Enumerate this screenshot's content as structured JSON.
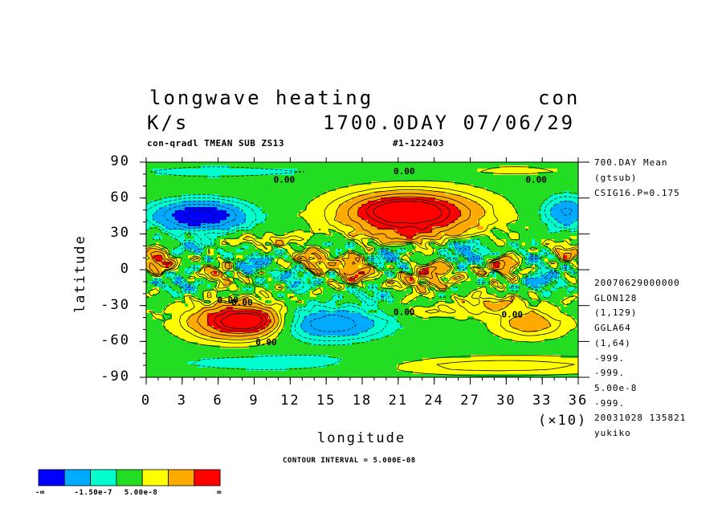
{
  "header": {
    "title_left": "longwave heating",
    "title_right": "con",
    "units": "K/s",
    "time": "1700.0DAY 07/06/29",
    "subtitle": "con-qradl TMEAN SUB ZS13",
    "run_id": "#1-122403"
  },
  "right_info": {
    "top": [
      "700.DAY Mean",
      "(gtsub)",
      "CSIG16.P=0.175"
    ],
    "bottom": [
      "20070629000000",
      "GLON128",
      "(1,129)",
      "GGLA64",
      "(1,64)",
      "-999.",
      "-999.",
      "5.00e-8",
      "-999.",
      "20031028 135821",
      "yukiko"
    ]
  },
  "colorbar": {
    "colors": [
      "#0000ff",
      "#00aaff",
      "#00ffcc",
      "#22dd22",
      "#ffff00",
      "#ffaa00",
      "#ff0000"
    ],
    "labels": [
      "-∞",
      "-1.50e-7",
      "5.00e-8",
      "∞"
    ]
  },
  "contour_interval": "CONTOUR INTERVAL = 5.000E-08",
  "contour_labels": [
    "0.00",
    "0.00",
    "0.00",
    "0.00",
    "0.00",
    "0.00",
    "0.00",
    "0.00"
  ],
  "chart_data": {
    "type": "heatmap",
    "title": "longwave heating",
    "xlabel": "longitude",
    "ylabel": "latitude",
    "x_multiplier": "(×10)",
    "xlim": [
      0,
      36
    ],
    "ylim": [
      -90,
      90
    ],
    "x_ticks": [
      0,
      3,
      6,
      9,
      12,
      15,
      18,
      21,
      24,
      27,
      30,
      33,
      36
    ],
    "y_ticks": [
      90,
      60,
      30,
      0,
      -30,
      -60,
      -90
    ],
    "x_tick_labels": [
      "0",
      "3",
      "6",
      "9",
      "12",
      "15",
      "18",
      "21",
      "24",
      "27",
      "30",
      "33",
      "36"
    ],
    "y_tick_labels": [
      "90",
      "60",
      "30",
      "0",
      "-30",
      "-60",
      "-90"
    ],
    "contour_interval": 5e-08,
    "features": [
      {
        "name": "heating max NH",
        "lon": 22,
        "lat": 47,
        "level": 6
      },
      {
        "name": "heating max SH",
        "lon": 8,
        "lat": -43,
        "level": 6
      },
      {
        "name": "cooling min NH",
        "lon": 4.5,
        "lat": 45,
        "level": 0
      },
      {
        "name": "cooling min SH",
        "lon": 15,
        "lat": -45,
        "level": 1
      },
      {
        "name": "tropical max",
        "lon": 1,
        "lat": 8,
        "level": 6
      }
    ]
  }
}
